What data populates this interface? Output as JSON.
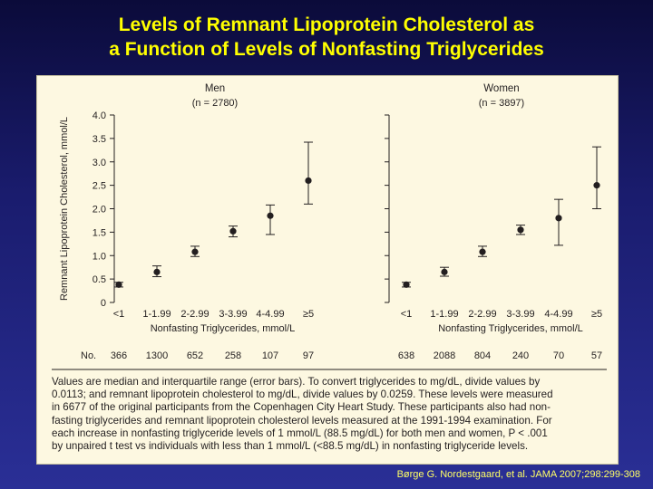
{
  "slide": {
    "title_line1": "Levels of Remnant Lipoprotein Cholesterol as",
    "title_line2": "a Function of Levels of Nonfasting Triglycerides",
    "citation": "Børge G. Nordestgaard, et al. JAMA 2007;298:299-308"
  },
  "caption_lines": [
    "Values are median and interquartile range (error bars). To convert triglycerides to mg/dL, divide values by",
    "0.0113; and remnant lipoprotein cholesterol to mg/dL, divide values by 0.0259. These levels were measured",
    "in 6677 of the original participants from the Copenhagen City Heart Study. These participants also had non-",
    "fasting triglycerides and remnant lipoprotein cholesterol levels measured at the 1991-1994 examination. For",
    "each increase in nonfasting triglyceride levels of 1 mmol/L (88.5 mg/dL) for both men and women, P < .001",
    "by unpaired t test vs individuals with less than 1 mmol/L (<88.5 mg/dL) in nonfasting triglyceride levels."
  ],
  "chart_data": [
    {
      "type": "scatter",
      "title": "Men",
      "subtitle": "(n = 2780)",
      "xlabel": "Nonfasting Triglycerides, mmol/L",
      "ylabel": "Remnant Lipoprotein Cholesterol, mmol/L",
      "ylim": [
        0,
        4.0
      ],
      "yticks": [
        "0",
        "0.5",
        "1.0",
        "1.5",
        "2.0",
        "2.5",
        "3.0",
        "3.5",
        "4.0"
      ],
      "categories": [
        "<1",
        "1-1.99",
        "2-2.99",
        "3-3.99",
        "4-4.99",
        "≥5"
      ],
      "median": [
        0.38,
        0.65,
        1.08,
        1.52,
        1.85,
        2.6
      ],
      "iqr_low": [
        0.33,
        0.55,
        0.98,
        1.4,
        1.45,
        2.1
      ],
      "iqr_high": [
        0.43,
        0.78,
        1.2,
        1.63,
        2.08,
        3.42
      ],
      "counts_label": "No.",
      "counts": [
        "366",
        "1300",
        "652",
        "258",
        "107",
        "97"
      ]
    },
    {
      "type": "scatter",
      "title": "Women",
      "subtitle": "(n = 3897)",
      "xlabel": "Nonfasting Triglycerides, mmol/L",
      "ylim": [
        0,
        4.0
      ],
      "categories": [
        "<1",
        "1-1.99",
        "2-2.99",
        "3-3.99",
        "4-4.99",
        "≥5"
      ],
      "median": [
        0.38,
        0.65,
        1.08,
        1.55,
        1.8,
        2.5
      ],
      "iqr_low": [
        0.33,
        0.56,
        0.98,
        1.45,
        1.22,
        2.0
      ],
      "iqr_high": [
        0.43,
        0.75,
        1.2,
        1.65,
        2.2,
        3.32
      ],
      "counts": [
        "638",
        "2088",
        "804",
        "240",
        "70",
        "57"
      ]
    }
  ]
}
